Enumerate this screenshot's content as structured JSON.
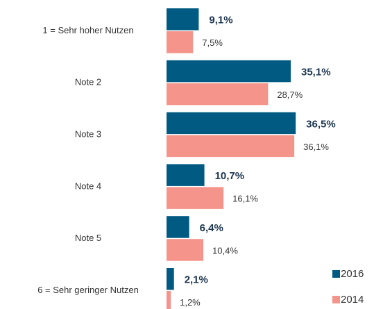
{
  "chart_data": {
    "type": "bar",
    "orientation": "horizontal",
    "categories": [
      "1 = Sehr hoher Nutzen",
      "Note 2",
      "Note 3",
      "Note 4",
      "Note 5",
      "6 = Sehr geringer Nutzen"
    ],
    "series": [
      {
        "name": "2016",
        "color": "#005a82",
        "values": [
          9.1,
          35.1,
          36.5,
          10.7,
          6.4,
          2.1
        ],
        "value_labels": [
          "9,1%",
          "35,1%",
          "36,5%",
          "10,7%",
          "6,4%",
          "2,1%"
        ]
      },
      {
        "name": "2014",
        "color": "#f4948a",
        "values": [
          7.5,
          28.7,
          36.1,
          16.1,
          10.4,
          1.2
        ],
        "value_labels": [
          "7,5%",
          "28,7%",
          "36,1%",
          "16,1%",
          "10,4%",
          "1,2%"
        ]
      }
    ]
  }
}
